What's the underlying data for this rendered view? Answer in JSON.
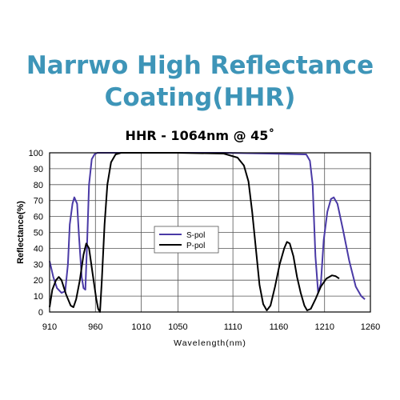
{
  "header": {
    "title_line1": "Narrwo High Reflectance",
    "title_line2": "Coating(HHR)"
  },
  "chart_data": {
    "type": "line",
    "title": "HHR - 1064nm @ 45˚",
    "xlabel": "Wavelength(nm)",
    "ylabel": "Reflectance(%)",
    "xlim": [
      910,
      1260
    ],
    "ylim": [
      0,
      100
    ],
    "xticks": [
      910,
      960,
      1010,
      1050,
      1110,
      1160,
      1210,
      1260
    ],
    "yticks": [
      0,
      10,
      20,
      30,
      40,
      50,
      60,
      70,
      80,
      90,
      100
    ],
    "grid": true,
    "legend_position": "center-left",
    "series": [
      {
        "name": "S-pol",
        "color": "#4a3aa6",
        "points": [
          [
            910,
            32
          ],
          [
            914,
            22
          ],
          [
            918,
            15
          ],
          [
            923,
            12
          ],
          [
            927,
            13
          ],
          [
            930,
            30
          ],
          [
            932,
            55
          ],
          [
            935,
            68
          ],
          [
            937,
            72
          ],
          [
            940,
            68
          ],
          [
            942,
            48
          ],
          [
            945,
            22
          ],
          [
            947,
            15
          ],
          [
            949,
            14
          ],
          [
            951,
            45
          ],
          [
            953,
            80
          ],
          [
            956,
            96
          ],
          [
            959,
            99
          ],
          [
            962,
            100
          ],
          [
            1000,
            100
          ],
          [
            1050,
            100
          ],
          [
            1100,
            100
          ],
          [
            1150,
            99.5
          ],
          [
            1190,
            99
          ],
          [
            1194,
            95
          ],
          [
            1197,
            80
          ],
          [
            1200,
            35
          ],
          [
            1203,
            12
          ],
          [
            1206,
            18
          ],
          [
            1209,
            45
          ],
          [
            1213,
            63
          ],
          [
            1217,
            71
          ],
          [
            1220,
            72
          ],
          [
            1224,
            68
          ],
          [
            1230,
            52
          ],
          [
            1237,
            32
          ],
          [
            1244,
            16
          ],
          [
            1250,
            10
          ],
          [
            1254,
            8
          ]
        ]
      },
      {
        "name": "P-pol",
        "color": "#000000",
        "points": [
          [
            910,
            3
          ],
          [
            913,
            14
          ],
          [
            917,
            20
          ],
          [
            920,
            22
          ],
          [
            923,
            20
          ],
          [
            928,
            11
          ],
          [
            933,
            4
          ],
          [
            936,
            3
          ],
          [
            939,
            8
          ],
          [
            943,
            20
          ],
          [
            947,
            36
          ],
          [
            950,
            43
          ],
          [
            953,
            40
          ],
          [
            957,
            24
          ],
          [
            961,
            8
          ],
          [
            963,
            2
          ],
          [
            965,
            0
          ],
          [
            967,
            20
          ],
          [
            970,
            55
          ],
          [
            973,
            80
          ],
          [
            977,
            94
          ],
          [
            982,
            99
          ],
          [
            988,
            100
          ],
          [
            1010,
            100
          ],
          [
            1050,
            100
          ],
          [
            1100,
            99.5
          ],
          [
            1115,
            97
          ],
          [
            1122,
            92
          ],
          [
            1127,
            82
          ],
          [
            1131,
            63
          ],
          [
            1135,
            40
          ],
          [
            1139,
            17
          ],
          [
            1143,
            5
          ],
          [
            1147,
            1
          ],
          [
            1151,
            4
          ],
          [
            1156,
            16
          ],
          [
            1161,
            30
          ],
          [
            1166,
            40
          ],
          [
            1169,
            44
          ],
          [
            1172,
            43
          ],
          [
            1176,
            35
          ],
          [
            1180,
            22
          ],
          [
            1184,
            12
          ],
          [
            1188,
            4
          ],
          [
            1191,
            1
          ],
          [
            1195,
            2
          ],
          [
            1200,
            8
          ],
          [
            1206,
            16
          ],
          [
            1212,
            21
          ],
          [
            1218,
            23
          ],
          [
            1222,
            22.5
          ],
          [
            1226,
            21
          ]
        ]
      }
    ]
  }
}
